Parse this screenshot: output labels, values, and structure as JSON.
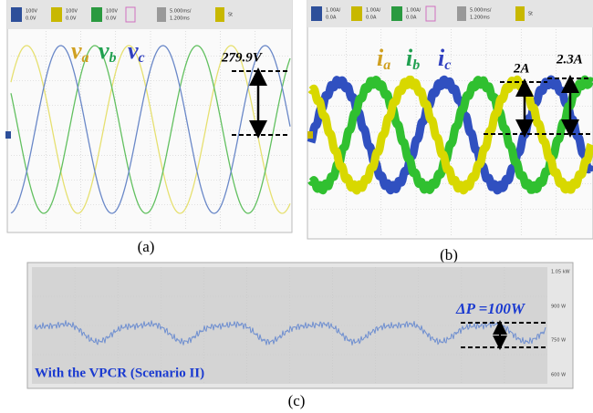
{
  "panel_a": {
    "header": [
      "100V",
      "0.0V",
      "100V",
      "0.0V",
      "100V",
      "0.0V",
      "5.000ms/",
      "1.200ms",
      "St"
    ],
    "legend": [
      {
        "base": "v",
        "sub": "a"
      },
      {
        "base": "v",
        "sub": "b"
      },
      {
        "base": "v",
        "sub": "c"
      }
    ],
    "annotation": "279.9V",
    "caption": "(a)"
  },
  "panel_b": {
    "header": [
      "1.00A/",
      "0.0A",
      "1.00A/",
      "0.0A",
      "1.00A/",
      "0.0A",
      "5.000ms/",
      "1.200ms",
      "St"
    ],
    "legend": [
      {
        "base": "i",
        "sub": "a"
      },
      {
        "base": "i",
        "sub": "b"
      },
      {
        "base": "i",
        "sub": "c"
      }
    ],
    "annotations": [
      "2A",
      "2.3A"
    ],
    "caption": "(b)"
  },
  "panel_c": {
    "axis_labels": [
      "1.05 kW",
      "900 W",
      "750 W",
      "600 W"
    ],
    "annotation": "ΔP =100W",
    "label": "With the VPCR (Scenario II)",
    "caption": "(c)"
  }
}
